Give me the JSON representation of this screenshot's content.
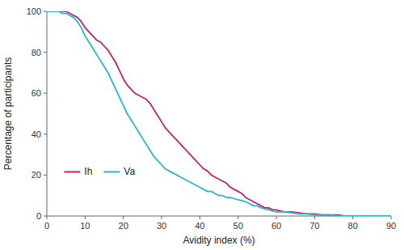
{
  "chart_data": {
    "type": "line",
    "xlabel": "Avidity index (%)",
    "ylabel": "Percentage of participants",
    "xlim": [
      0,
      90
    ],
    "ylim": [
      0,
      100
    ],
    "xticks": [
      0,
      10,
      20,
      30,
      40,
      50,
      60,
      70,
      80,
      90
    ],
    "yticks": [
      0,
      20,
      40,
      60,
      80,
      100
    ],
    "grid": false,
    "legend": "lower left",
    "x": [
      0,
      1,
      2,
      3,
      4,
      5,
      6,
      7,
      8,
      9,
      10,
      11,
      12,
      13,
      14,
      15,
      16,
      17,
      18,
      19,
      20,
      21,
      22,
      23,
      24,
      25,
      26,
      27,
      28,
      29,
      30,
      31,
      32,
      33,
      34,
      35,
      36,
      37,
      38,
      39,
      40,
      41,
      42,
      43,
      44,
      45,
      46,
      47,
      48,
      49,
      50,
      51,
      52,
      53,
      54,
      55,
      56,
      57,
      58,
      59,
      60,
      62,
      64,
      66,
      68,
      70,
      72,
      74,
      76,
      78,
      80,
      85,
      90
    ],
    "series": [
      {
        "name": "Ih",
        "color": "#C0226B",
        "values": [
          100,
          100,
          100,
          100,
          100,
          100,
          99,
          98,
          97,
          95,
          92,
          90,
          88,
          86,
          85,
          83,
          81,
          78,
          75,
          71,
          67,
          64,
          62,
          60,
          59,
          58,
          57,
          55,
          52,
          49,
          46,
          43,
          41,
          39,
          37,
          35,
          33,
          31,
          29,
          27,
          25,
          23,
          22,
          20,
          19,
          18,
          17,
          16,
          14,
          13,
          12,
          11,
          9,
          8,
          7,
          6,
          5,
          4,
          4,
          3,
          3,
          2,
          2,
          1.5,
          1,
          1,
          0.5,
          0.5,
          0.5,
          0,
          0,
          0,
          0
        ]
      },
      {
        "name": "Va",
        "color": "#29B8C8",
        "values": [
          100,
          100,
          100,
          100,
          99,
          99,
          98,
          97,
          95,
          92,
          88,
          85,
          82,
          79,
          76,
          73,
          70,
          66,
          62,
          58,
          54,
          50,
          47,
          44,
          41,
          38,
          35,
          32,
          29,
          27,
          25,
          23,
          22,
          21,
          20,
          19,
          18,
          17,
          16,
          15,
          14,
          13,
          12,
          12,
          11,
          10,
          10,
          9,
          9,
          8.5,
          8,
          7.5,
          7,
          6,
          5,
          5,
          4,
          3.5,
          3,
          2.5,
          2,
          2,
          1.5,
          1,
          1,
          0.5,
          0.5,
          0.5,
          0,
          0,
          0,
          0,
          0
        ]
      }
    ]
  }
}
